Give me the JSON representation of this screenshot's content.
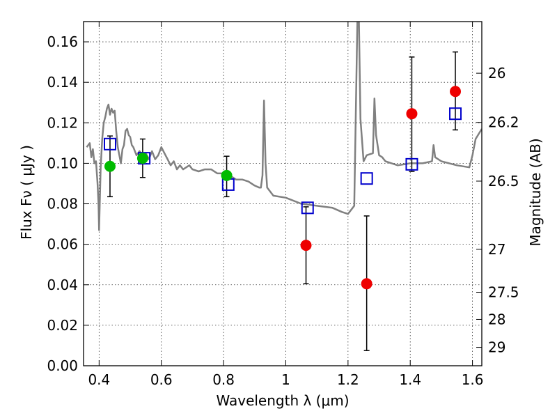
{
  "chart_data": {
    "type": "scatter",
    "xlabel": "Wavelength  λ (μm)",
    "ylabel": "Flux  Fν  ( μJy )",
    "ylabel_right": "Magnitude (AB)",
    "xlim": [
      0.35,
      1.63
    ],
    "ylim": [
      0.0,
      0.17
    ],
    "grid": true,
    "x_ticks": [
      0.4,
      0.6,
      0.8,
      1.0,
      1.2,
      1.4,
      1.6
    ],
    "x_tick_labels": [
      "0.4",
      "0.6",
      "0.8",
      "1",
      "1.2",
      "1.4",
      "1.6"
    ],
    "y_ticks": [
      0.0,
      0.02,
      0.04,
      0.06,
      0.08,
      0.1,
      0.12,
      0.14,
      0.16
    ],
    "y_tick_labels": [
      "0.00",
      "0.02",
      "0.04",
      "0.06",
      "0.08",
      "0.10",
      "0.12",
      "0.14",
      "0.16"
    ],
    "right_ticks": [
      {
        "label": "26",
        "flux": 0.1445
      },
      {
        "label": "26.2",
        "flux": 0.1202
      },
      {
        "label": "26.5",
        "flux": 0.0912
      },
      {
        "label": "27",
        "flux": 0.0575
      },
      {
        "label": "27.5",
        "flux": 0.0363
      },
      {
        "label": "28",
        "flux": 0.0229
      },
      {
        "label": "29",
        "flux": 0.0091
      }
    ],
    "series": [
      {
        "name": "model-spectrum",
        "kind": "line",
        "color": "#808080",
        "x": [
          0.36,
          0.37,
          0.375,
          0.38,
          0.385,
          0.39,
          0.395,
          0.398,
          0.4,
          0.405,
          0.41,
          0.415,
          0.42,
          0.425,
          0.43,
          0.435,
          0.44,
          0.445,
          0.45,
          0.455,
          0.46,
          0.465,
          0.47,
          0.475,
          0.48,
          0.485,
          0.49,
          0.495,
          0.5,
          0.505,
          0.51,
          0.52,
          0.53,
          0.54,
          0.55,
          0.56,
          0.57,
          0.58,
          0.59,
          0.6,
          0.61,
          0.62,
          0.63,
          0.64,
          0.65,
          0.66,
          0.67,
          0.68,
          0.69,
          0.7,
          0.72,
          0.74,
          0.76,
          0.78,
          0.8,
          0.82,
          0.84,
          0.86,
          0.88,
          0.9,
          0.915,
          0.92,
          0.925,
          0.93,
          0.935,
          0.94,
          0.96,
          1.0,
          1.05,
          1.1,
          1.15,
          1.18,
          1.2,
          1.22,
          1.23,
          1.235,
          1.24,
          1.25,
          1.26,
          1.28,
          1.285,
          1.29,
          1.3,
          1.31,
          1.32,
          1.34,
          1.36,
          1.4,
          1.44,
          1.47,
          1.475,
          1.48,
          1.5,
          1.55,
          1.59,
          1.6,
          1.61,
          1.63
        ],
        "y": [
          0.108,
          0.11,
          0.103,
          0.107,
          0.1,
          0.101,
          0.09,
          0.08,
          0.067,
          0.098,
          0.112,
          0.12,
          0.123,
          0.127,
          0.129,
          0.124,
          0.127,
          0.125,
          0.126,
          0.116,
          0.108,
          0.104,
          0.1,
          0.107,
          0.109,
          0.116,
          0.117,
          0.114,
          0.113,
          0.109,
          0.108,
          0.104,
          0.106,
          0.104,
          0.105,
          0.102,
          0.106,
          0.102,
          0.104,
          0.108,
          0.105,
          0.102,
          0.099,
          0.101,
          0.097,
          0.099,
          0.097,
          0.098,
          0.099,
          0.097,
          0.096,
          0.097,
          0.097,
          0.095,
          0.095,
          0.094,
          0.092,
          0.092,
          0.091,
          0.089,
          0.088,
          0.088,
          0.094,
          0.131,
          0.1,
          0.088,
          0.084,
          0.083,
          0.08,
          0.079,
          0.078,
          0.076,
          0.075,
          0.079,
          0.171,
          0.171,
          0.122,
          0.101,
          0.104,
          0.105,
          0.132,
          0.114,
          0.104,
          0.103,
          0.101,
          0.1,
          0.099,
          0.1,
          0.1,
          0.101,
          0.109,
          0.103,
          0.101,
          0.099,
          0.098,
          0.104,
          0.112,
          0.117
        ]
      },
      {
        "name": "model-photometry",
        "kind": "hollow-square",
        "color": "#0000cc",
        "x": [
          0.435,
          0.545,
          0.815,
          1.07,
          1.26,
          1.405,
          1.545
        ],
        "y": [
          0.1095,
          0.1025,
          0.0895,
          0.078,
          0.0925,
          0.0995,
          0.1245
        ]
      },
      {
        "name": "optical-detections",
        "kind": "filled-circle",
        "color": "#00bb00",
        "x": [
          0.435,
          0.54,
          0.81
        ],
        "y": [
          0.0985,
          0.1025,
          0.094
        ],
        "err_low": [
          0.015,
          0.0095,
          0.0105
        ],
        "err_high": [
          0.015,
          0.0095,
          0.0095
        ]
      },
      {
        "name": "infrared-detections",
        "kind": "filled-circle",
        "color": "#ee0000",
        "x": [
          1.065,
          1.26,
          1.405,
          1.545
        ],
        "y": [
          0.0595,
          0.0405,
          0.1245,
          0.1355
        ],
        "err_low": [
          0.019,
          0.033,
          0.0285,
          0.019
        ],
        "err_high": [
          0.019,
          0.0335,
          0.028,
          0.0195
        ]
      }
    ]
  }
}
